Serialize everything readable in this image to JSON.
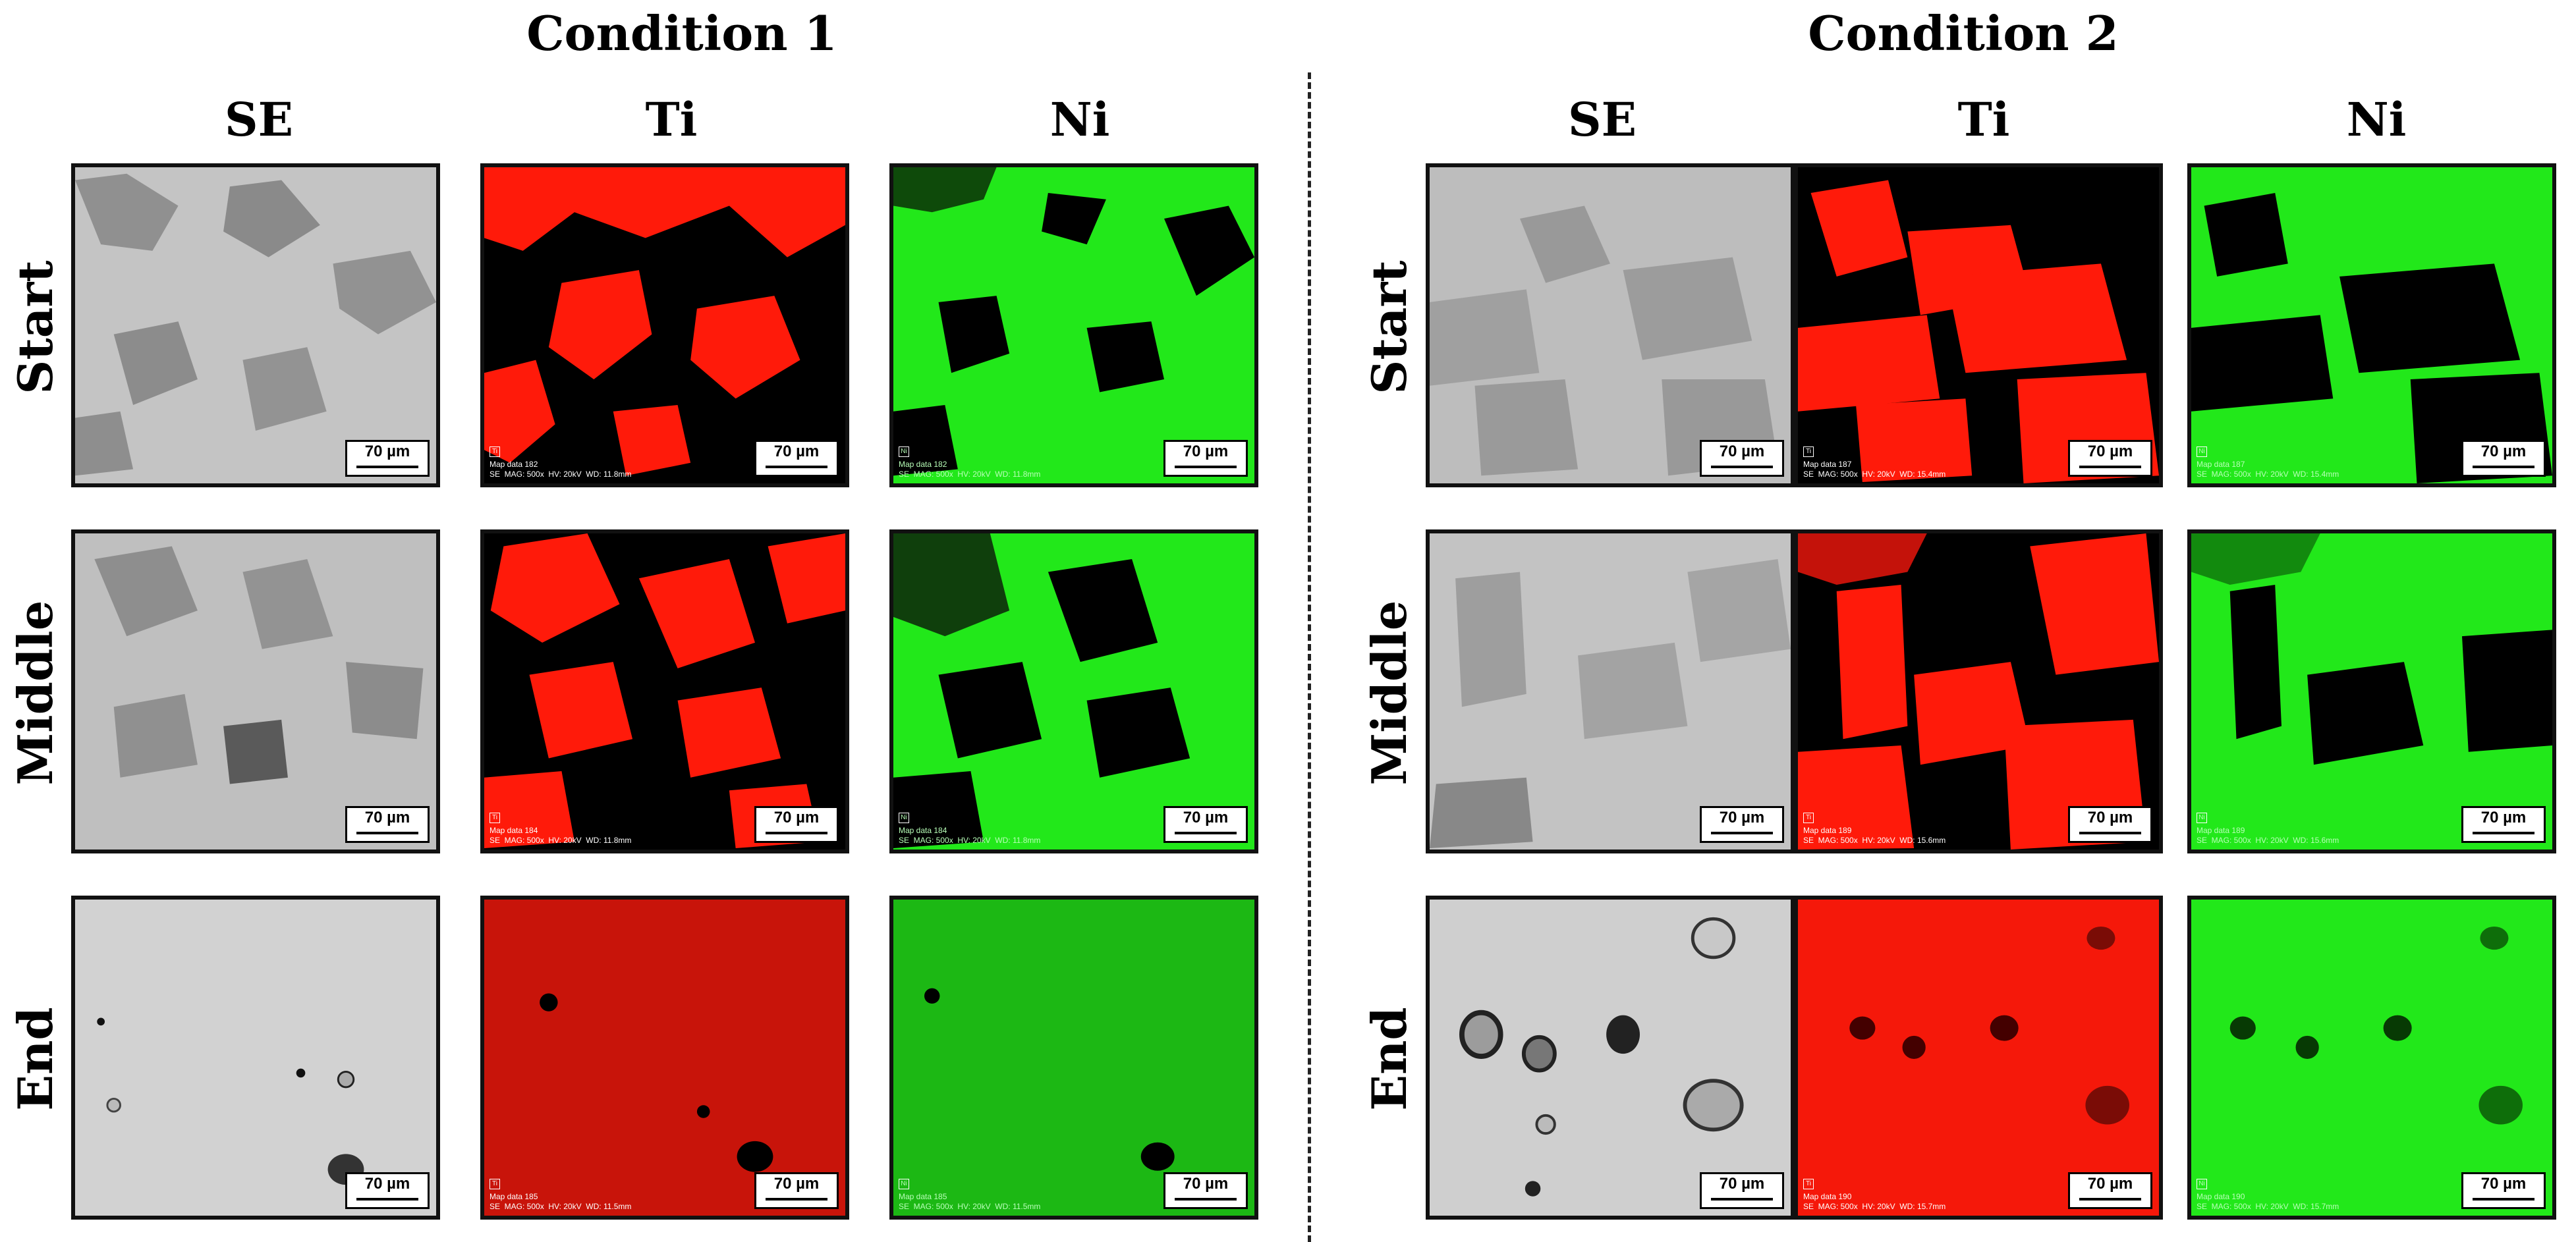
{
  "conditions": [
    {
      "title": "Condition 1",
      "columns": [
        "SE",
        "Ti",
        "Ni"
      ]
    },
    {
      "title": "Condition 2",
      "columns": [
        "SE",
        "Ti",
        "Ni"
      ]
    }
  ],
  "rows": [
    "Start",
    "Middle",
    "End"
  ],
  "scale_label": "70 µm",
  "element_icons": {
    "ti": "Ti",
    "ni": "Ni"
  },
  "map_meta": {
    "c1_start": {
      "map": "Map data 182",
      "line": "SE  MAG: 500x  HV: 20kV  WD: 11.8mm"
    },
    "c1_middle": {
      "map": "Map data 184",
      "line": "SE  MAG: 500x  HV: 20kV  WD: 11.8mm"
    },
    "c1_end": {
      "map": "Map data 185",
      "line": "SE  MAG: 500x  HV: 20kV  WD: 11.5mm"
    },
    "c2_start": {
      "map": "Map data 187",
      "line": "SE  MAG: 500x  HV: 20kV  WD: 15.4mm"
    },
    "c2_middle": {
      "map": "Map data 189",
      "line": "SE  MAG: 500x  HV: 20kV  WD: 15.6mm"
    },
    "c2_end": {
      "map": "Map data 190",
      "line": "SE  MAG: 500x  HV: 20kV  WD: 15.7mm"
    }
  },
  "colors": {
    "ti_map": "#ff1a0a",
    "ni_map": "#22e81a",
    "se_light": "#c8c8c8",
    "se_dark": "#8e8e8e",
    "background": "#000000"
  }
}
